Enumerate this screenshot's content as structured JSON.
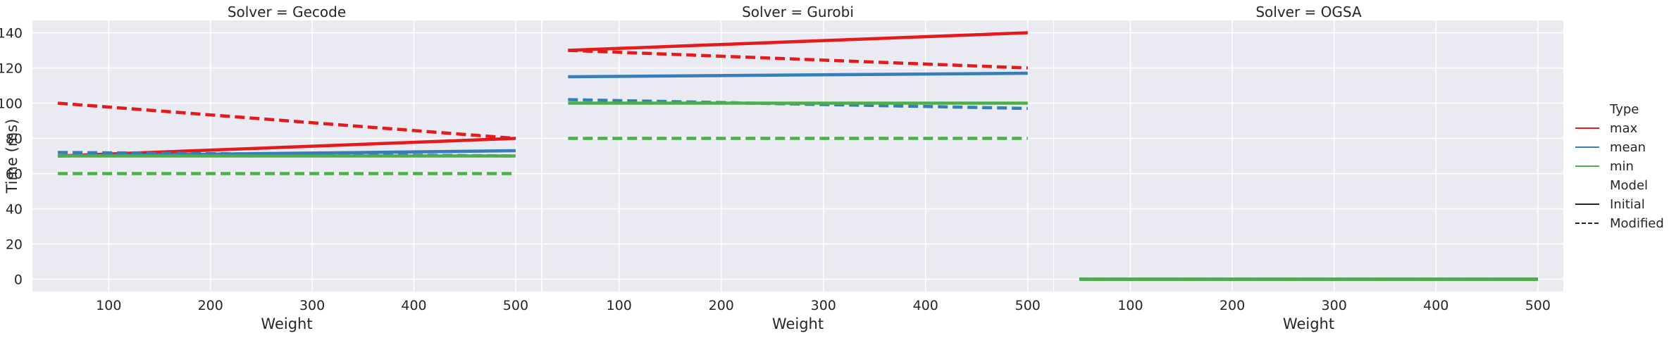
{
  "chart_data": {
    "type": "line",
    "ylabel": "Time (ms)",
    "xlabel": "Weight",
    "xlim": [
      25,
      525
    ],
    "ylim": [
      -7,
      147
    ],
    "xticks": [
      100,
      200,
      300,
      400,
      500
    ],
    "yticks": [
      0,
      20,
      40,
      60,
      80,
      100,
      120,
      140
    ],
    "grid": true,
    "legend_placement": "right",
    "legend": {
      "type_title": "Type",
      "model_title": "Model",
      "types": [
        {
          "label": "max",
          "color": "#e41a1c"
        },
        {
          "label": "mean",
          "color": "#377eb8"
        },
        {
          "label": "min",
          "color": "#4daf4a"
        }
      ],
      "models": [
        {
          "label": "Initial",
          "dash": "solid"
        },
        {
          "label": "Modified",
          "dash": "dashed"
        }
      ]
    },
    "panels": [
      {
        "title": "Solver = Gecode",
        "series": [
          {
            "type": "max",
            "model": "Initial",
            "x": [
              50,
              500
            ],
            "y": [
              70,
              80
            ]
          },
          {
            "type": "max",
            "model": "Modified",
            "x": [
              50,
              500
            ],
            "y": [
              100,
              80
            ]
          },
          {
            "type": "mean",
            "model": "Initial",
            "x": [
              50,
              500
            ],
            "y": [
              70,
              73
            ]
          },
          {
            "type": "mean",
            "model": "Modified",
            "x": [
              50,
              500
            ],
            "y": [
              72,
              70
            ]
          },
          {
            "type": "min",
            "model": "Initial",
            "x": [
              50,
              500
            ],
            "y": [
              70,
              70
            ]
          },
          {
            "type": "min",
            "model": "Modified",
            "x": [
              50,
              500
            ],
            "y": [
              60,
              60
            ]
          }
        ]
      },
      {
        "title": "Solver = Gurobi",
        "series": [
          {
            "type": "max",
            "model": "Initial",
            "x": [
              50,
              500
            ],
            "y": [
              130,
              140
            ]
          },
          {
            "type": "max",
            "model": "Modified",
            "x": [
              50,
              500
            ],
            "y": [
              130,
              120
            ]
          },
          {
            "type": "mean",
            "model": "Initial",
            "x": [
              50,
              500
            ],
            "y": [
              115,
              117
            ]
          },
          {
            "type": "mean",
            "model": "Modified",
            "x": [
              50,
              500
            ],
            "y": [
              102,
              97
            ]
          },
          {
            "type": "min",
            "model": "Initial",
            "x": [
              50,
              500
            ],
            "y": [
              100,
              100
            ]
          },
          {
            "type": "min",
            "model": "Modified",
            "x": [
              50,
              500
            ],
            "y": [
              80,
              80
            ]
          }
        ]
      },
      {
        "title": "Solver = OGSA",
        "series": [
          {
            "type": "max",
            "model": "Initial",
            "x": [
              50,
              500
            ],
            "y": [
              0,
              0
            ]
          },
          {
            "type": "max",
            "model": "Modified",
            "x": [
              50,
              500
            ],
            "y": [
              0,
              0
            ]
          },
          {
            "type": "mean",
            "model": "Initial",
            "x": [
              50,
              500
            ],
            "y": [
              0,
              0
            ]
          },
          {
            "type": "mean",
            "model": "Modified",
            "x": [
              50,
              500
            ],
            "y": [
              0,
              0
            ]
          },
          {
            "type": "min",
            "model": "Initial",
            "x": [
              50,
              500
            ],
            "y": [
              0,
              0
            ]
          },
          {
            "type": "min",
            "model": "Modified",
            "x": [
              50,
              500
            ],
            "y": [
              0,
              0
            ]
          }
        ]
      }
    ]
  }
}
